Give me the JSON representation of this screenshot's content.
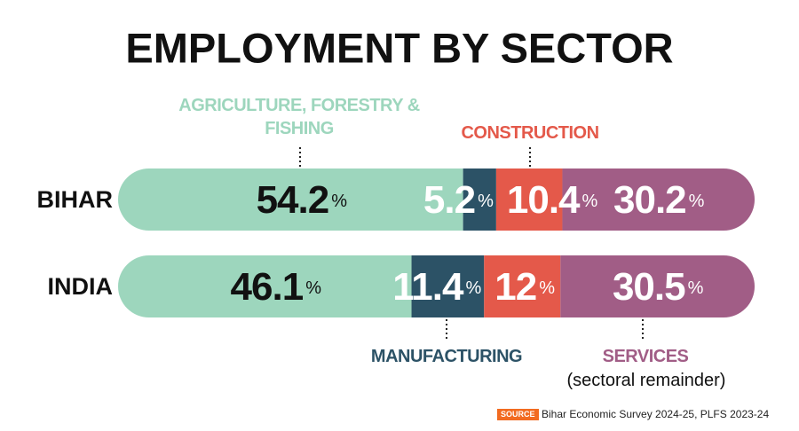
{
  "chart_data": {
    "type": "stacked-bar",
    "orientation": "horizontal",
    "title": "EMPLOYMENT BY SECTOR",
    "categories": [
      "BIHAR",
      "INDIA"
    ],
    "xlim": [
      0,
      100
    ],
    "series": [
      {
        "name": "AGRICULTURE, FORESTRY & FISHING",
        "color": "#9dd6bd",
        "values": [
          54.2,
          46.1
        ],
        "value_labels": [
          "54.2%",
          "46.1%"
        ]
      },
      {
        "name": "MANUFACTURING",
        "color": "#2c5266",
        "values": [
          5.2,
          11.4
        ],
        "value_labels": [
          "5.2%",
          "11.4%"
        ]
      },
      {
        "name": "CONSTRUCTION",
        "color": "#e4594a",
        "values": [
          10.4,
          12
        ],
        "value_labels": [
          "10.4%",
          "12%"
        ]
      },
      {
        "name": "SERVICES",
        "color": "#a15d86",
        "values": [
          30.2,
          30.5
        ],
        "value_labels": [
          "30.2%",
          "30.5%"
        ]
      }
    ],
    "annotation": "(sectoral remainder)",
    "source_label": "SOURCE",
    "source": "Bihar Economic Survey 2024-25, PLFS 2023-24"
  }
}
